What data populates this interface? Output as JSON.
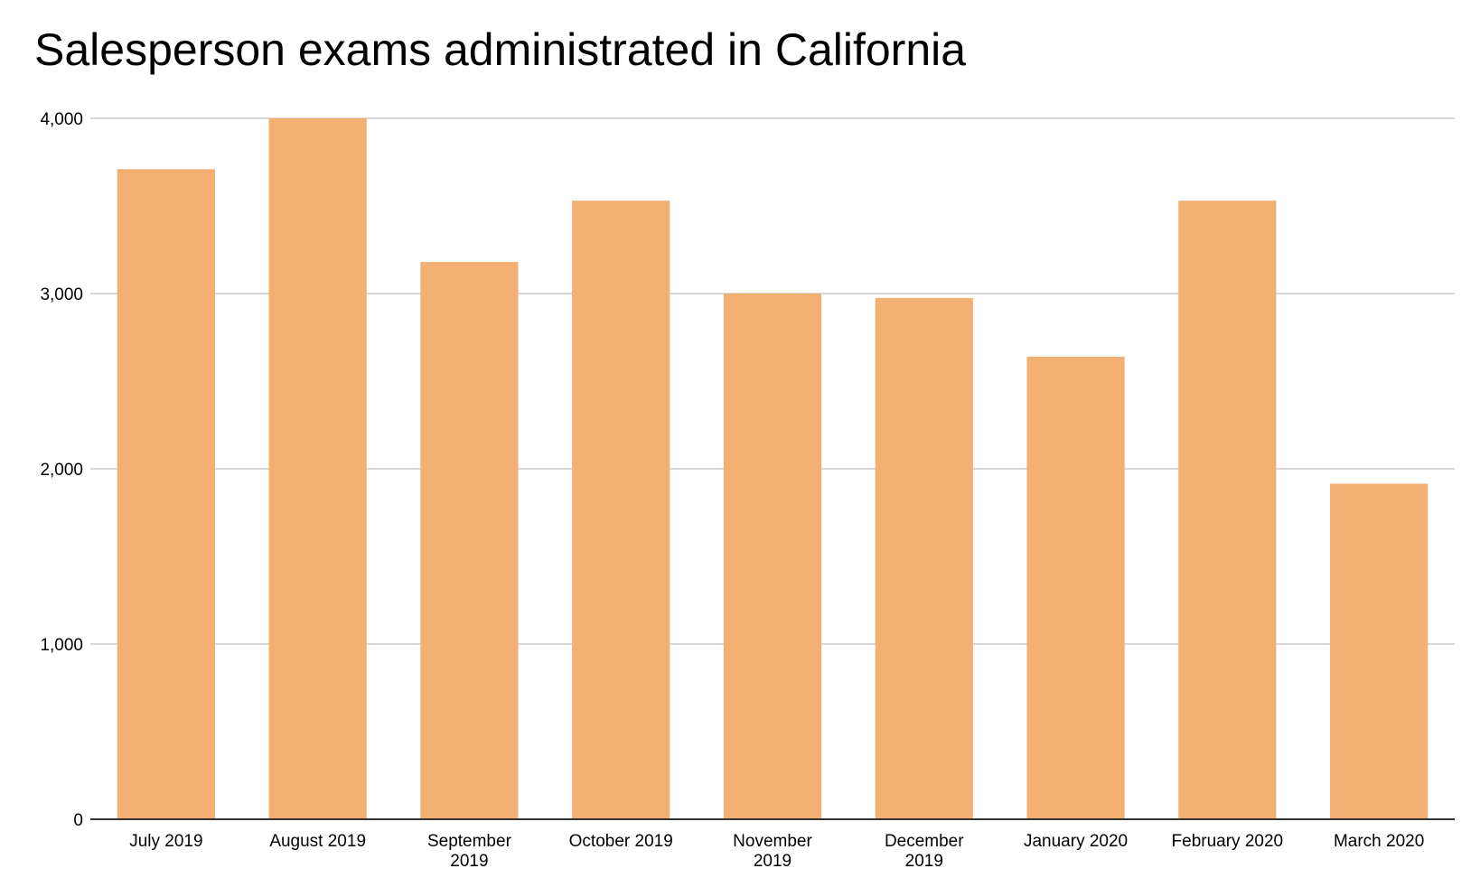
{
  "chart_data": {
    "type": "bar",
    "title": "Salesperson exams administrated in California",
    "xlabel": "",
    "ylabel": "",
    "categories": [
      "July 2019",
      "August 2019",
      "September 2019",
      "October 2019",
      "November 2019",
      "December 2019",
      "January 2020",
      "February 2020",
      "March 2020"
    ],
    "category_lines": [
      [
        "July 2019"
      ],
      [
        "August 2019"
      ],
      [
        "September",
        "2019"
      ],
      [
        "October 2019"
      ],
      [
        "November",
        "2019"
      ],
      [
        "December",
        "2019"
      ],
      [
        "January 2020"
      ],
      [
        "February 2020"
      ],
      [
        "March 2020"
      ]
    ],
    "values": [
      3710,
      4000,
      3180,
      3530,
      3000,
      2975,
      2640,
      3530,
      1915
    ],
    "ylim": [
      0,
      4000
    ],
    "yticks": [
      0,
      1000,
      2000,
      3000,
      4000
    ],
    "ytick_labels": [
      "0",
      "1,000",
      "2,000",
      "3,000",
      "4,000"
    ],
    "grid": true,
    "legend": "none",
    "bar_color": "#f4b073",
    "grid_color": "#cccccc",
    "axis_color": "#333333"
  }
}
